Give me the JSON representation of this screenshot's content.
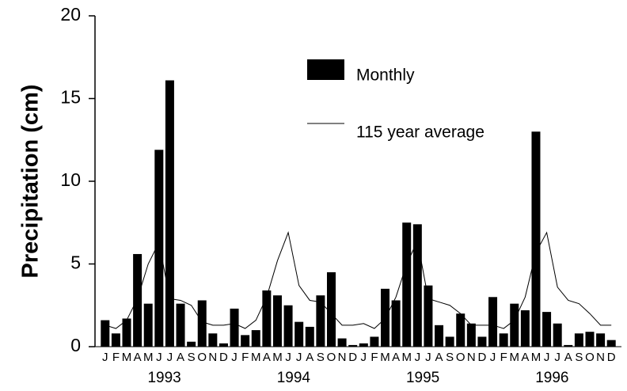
{
  "chart_data": {
    "type": "bar",
    "y_label": "Precipitation (cm)",
    "categories": [
      "J",
      "F",
      "M",
      "A",
      "M",
      "J",
      "J",
      "A",
      "S",
      "O",
      "N",
      "D",
      "J",
      "F",
      "M",
      "A",
      "M",
      "J",
      "J",
      "A",
      "S",
      "O",
      "N",
      "D",
      "J",
      "F",
      "M",
      "A",
      "M",
      "J",
      "J",
      "A",
      "S",
      "O",
      "N",
      "D",
      "J",
      "F",
      "M",
      "A",
      "M",
      "J",
      "J",
      "A",
      "S",
      "O",
      "N",
      "D"
    ],
    "year_labels": [
      "1993",
      "1994",
      "1995",
      "1996"
    ],
    "series": [
      {
        "name": "Monthly",
        "type": "bar",
        "color": "#000000",
        "values": [
          1.6,
          0.8,
          1.7,
          5.6,
          2.6,
          11.9,
          16.1,
          2.6,
          0.3,
          2.8,
          0.8,
          0.2,
          2.3,
          0.7,
          1.0,
          3.4,
          3.1,
          2.5,
          1.5,
          1.2,
          3.1,
          4.5,
          0.5,
          0.1,
          0.2,
          0.6,
          3.5,
          2.8,
          7.5,
          7.4,
          3.7,
          1.3,
          0.6,
          2.0,
          1.4,
          0.6,
          3.0,
          0.8,
          2.6,
          2.2,
          13.0,
          2.1,
          1.4,
          0.1,
          0.8,
          0.9,
          0.8,
          0.4
        ]
      },
      {
        "name": "115 year average",
        "type": "line",
        "color": "#000000",
        "values": [
          1.3,
          1.1,
          1.6,
          2.9,
          5.0,
          6.3,
          2.9,
          2.8,
          2.5,
          1.5,
          1.3,
          1.3,
          1.4,
          1.1,
          1.6,
          3.0,
          5.2,
          6.9,
          3.7,
          2.8,
          2.7,
          2.0,
          1.3,
          1.3,
          1.4,
          1.1,
          1.7,
          3.0,
          5.0,
          6.4,
          2.9,
          2.7,
          2.5,
          2.0,
          1.3,
          1.3,
          1.3,
          1.1,
          1.6,
          3.0,
          5.7,
          6.9,
          3.6,
          2.8,
          2.6,
          2.0,
          1.3,
          1.3
        ]
      }
    ],
    "ylim": [
      0,
      20
    ],
    "yticks": [
      0,
      5,
      10,
      15,
      20
    ],
    "grid": false
  }
}
